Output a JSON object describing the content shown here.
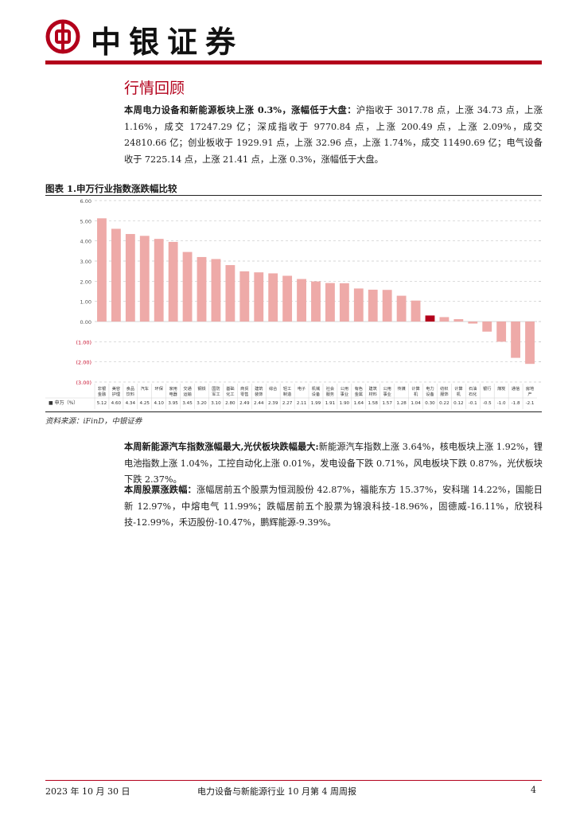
{
  "header": {
    "brand": "中银证券"
  },
  "section_title": "行情回顾",
  "para1": {
    "lead": "本周电力设备和新能源板块上涨 0.3%，涨幅低于大盘：",
    "text": "沪指收于 3017.78 点，上涨 34.73 点，上涨 1.16%，成交 17247.29 亿；深成指收于 9770.84 点，上涨 200.49 点，上涨 2.09%，成交 24810.66 亿；创业板收于 1929.91 点，上涨 32.96 点，上涨 1.74%，成交 11490.69 亿；电气设备收于 7225.14 点，上涨 21.41 点，上涨 0.3%，涨幅低于大盘。"
  },
  "figure": {
    "title": "图表 1.申万行业指数涨跌幅比较",
    "source": "资料来源：iFinD，中银证券"
  },
  "chart_data": {
    "type": "bar",
    "row_label": "■ 申万（%）",
    "ylim": [
      -3,
      6
    ],
    "yticks": [
      "6.00",
      "5.00",
      "4.00",
      "3.00",
      "2.00",
      "1.00",
      "0.00",
      "(1.00)",
      "(2.00)",
      "(3.00)"
    ],
    "highlight_category": "电力设备",
    "colors": {
      "bar": "#eeaaa8",
      "highlight": "#b3001b",
      "negative_tick": "#c8102e"
    },
    "categories": [
      "非银金融",
      "美容护理",
      "食品饮料",
      "汽车",
      "环保",
      "家用电器",
      "交通运输",
      "钢铁",
      "国防军工",
      "基础化工",
      "商贸零售",
      "建筑装饰",
      "综合",
      "轻工制造",
      "电子",
      "机械设备",
      "社会服务",
      "公用事业",
      "有色金属",
      "建筑材料",
      "公用事业",
      "传媒",
      "计算机",
      "电力设备",
      "纺织服饰",
      "计算机",
      "石油石化",
      "银行",
      "煤炭",
      "通信",
      "房地产"
    ],
    "labels": [
      "5.12",
      "4.60",
      "4.34",
      "4.25",
      "4.10",
      "3.95",
      "3.45",
      "3.20",
      "3.10",
      "2.80",
      "2.49",
      "2.44",
      "2.39",
      "2.27",
      "2.11",
      "1.99",
      "1.91",
      "1.90",
      "1.64",
      "1.58",
      "1.57",
      "1.28",
      "1.04",
      "0.30",
      "0.22",
      "0.12",
      "-0.1",
      "-0.5",
      "-1.0",
      "-1.8",
      "-2.1"
    ],
    "values": [
      5.12,
      4.6,
      4.34,
      4.25,
      4.1,
      3.95,
      3.45,
      3.2,
      3.1,
      2.8,
      2.49,
      2.44,
      2.39,
      2.27,
      2.11,
      1.99,
      1.91,
      1.9,
      1.64,
      1.58,
      1.57,
      1.28,
      1.04,
      0.3,
      0.22,
      0.12,
      -0.1,
      -0.5,
      -1.0,
      -1.8,
      -2.1
    ]
  },
  "para2": {
    "lead": "本周新能源汽车指数涨幅最大,光伏板块跌幅最大:",
    "text": "新能源汽车指数上涨 3.64%，核电板块上涨 1.92%，锂电池指数上涨 1.04%，工控自动化上涨 0.01%，发电设备下跌 0.71%，风电板块下跌 0.87%，光伏板块下跌 2.37%。"
  },
  "para3": {
    "lead": "本周股票涨跌幅：",
    "text": "涨幅居前五个股票为恒润股份 42.87%，福能东方 15.37%，安科瑞 14.22%，国能日新 12.97%，中熔电气 11.99%；跌幅居前五个股票为锦浪科技-18.96%，固德威-16.11%，欣锐科技-12.99%，禾迈股份-10.47%，鹏辉能源-9.39%。"
  },
  "footer": {
    "date": "2023 年 10 月 30 日",
    "title": "电力设备与新能源行业 10 月第 4 周周报",
    "page": "4"
  }
}
